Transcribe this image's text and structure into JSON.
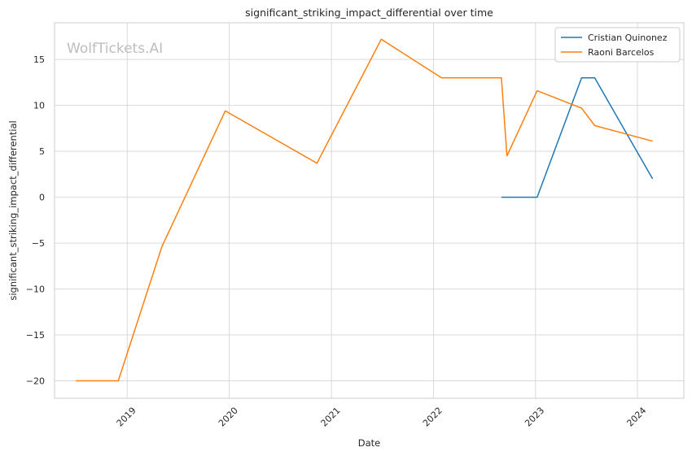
{
  "chart_data": {
    "type": "line",
    "title": "significant_striking_impact_differential over time",
    "xlabel": "Date",
    "ylabel": "significant_striking_impact_differential",
    "watermark": "WolfTickets.AI",
    "x_ticks": [
      "2019",
      "2020",
      "2021",
      "2022",
      "2023",
      "2024"
    ],
    "y_ticks": [
      -20,
      -15,
      -10,
      -5,
      0,
      5,
      10,
      15
    ],
    "xlim": [
      "2018-04-16",
      "2024-06-15"
    ],
    "ylim": [
      -21.9,
      19.0
    ],
    "grid": true,
    "legend_position": "top-right",
    "series": [
      {
        "name": "Cristian Quinonez",
        "color": "#1f77b4",
        "points": [
          {
            "x": "2022-09-01",
            "y": 0
          },
          {
            "x": "2023-01-07",
            "y": 0
          },
          {
            "x": "2023-06-15",
            "y": 13.0
          },
          {
            "x": "2023-08-01",
            "y": 13.0
          },
          {
            "x": "2024-02-24",
            "y": 2.0
          }
        ]
      },
      {
        "name": "Raoni Barcelos",
        "color": "#ff7f0e",
        "points": [
          {
            "x": "2018-07-01",
            "y": -20
          },
          {
            "x": "2018-11-30",
            "y": -20
          },
          {
            "x": "2019-05-05",
            "y": -5.4
          },
          {
            "x": "2019-12-18",
            "y": 9.4
          },
          {
            "x": "2020-11-10",
            "y": 3.7
          },
          {
            "x": "2021-06-28",
            "y": 17.2
          },
          {
            "x": "2022-01-30",
            "y": 13.0
          },
          {
            "x": "2022-09-01",
            "y": 13.0
          },
          {
            "x": "2022-09-21",
            "y": 4.5
          },
          {
            "x": "2023-01-07",
            "y": 11.6
          },
          {
            "x": "2023-06-15",
            "y": 9.7
          },
          {
            "x": "2023-08-01",
            "y": 7.8
          },
          {
            "x": "2024-02-24",
            "y": 6.1
          }
        ]
      }
    ]
  }
}
